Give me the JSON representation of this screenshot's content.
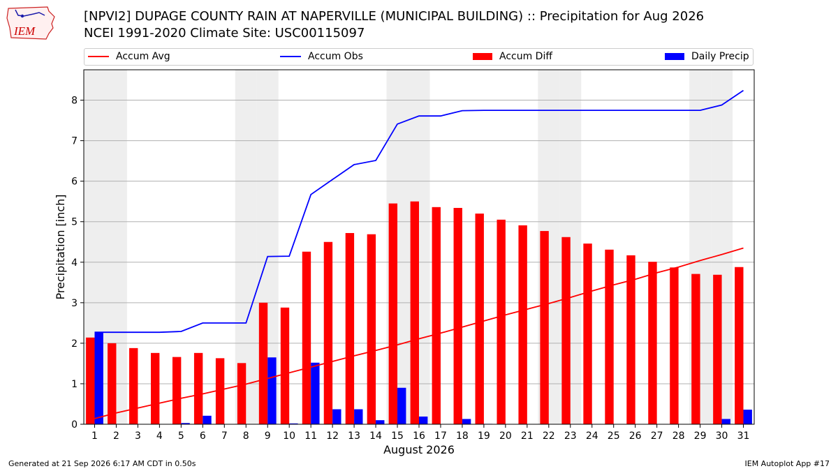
{
  "header": {
    "logo_text": "IEM",
    "title_line1": "[NPVI2] DUPAGE COUNTY RAIN AT NAPERVILLE (MUNICIPAL BUILDING) :: Precipitation for Aug 2026",
    "title_line2": "NCEI 1991-2020 Climate Site: USC00115097"
  },
  "legend": {
    "items": [
      {
        "label": "Accum Avg",
        "color": "#ff0000",
        "kind": "line"
      },
      {
        "label": "Accum Obs",
        "color": "#0000ff",
        "kind": "line"
      },
      {
        "label": "Accum Diff",
        "color": "#ff0000",
        "kind": "box"
      },
      {
        "label": "Daily Precip",
        "color": "#0000ff",
        "kind": "box"
      }
    ]
  },
  "footer": {
    "left": "Generated at 21 Sep 2026 6:17 AM CDT in 0.50s",
    "right": "IEM Autoplot App #17"
  },
  "chart_data": {
    "type": "bar",
    "xlabel": "August 2026",
    "ylabel": "Precipitation [inch]",
    "ylim": [
      0,
      8.75
    ],
    "yticks": [
      0,
      1,
      2,
      3,
      4,
      5,
      6,
      7,
      8
    ],
    "grid": "horizontal",
    "legend_position": "top",
    "days": [
      1,
      2,
      3,
      4,
      5,
      6,
      7,
      8,
      9,
      10,
      11,
      12,
      13,
      14,
      15,
      16,
      17,
      18,
      19,
      20,
      21,
      22,
      23,
      24,
      25,
      26,
      27,
      28,
      29,
      30,
      31
    ],
    "weekend_shading_days": [
      1,
      2,
      8,
      9,
      15,
      16,
      22,
      23,
      29,
      30
    ],
    "series": [
      {
        "name": "Accum Diff",
        "type": "bar",
        "color": "#ff0000",
        "values": [
          2.14,
          2.0,
          1.88,
          1.76,
          1.66,
          1.76,
          1.63,
          1.51,
          3.0,
          2.88,
          4.26,
          4.5,
          4.72,
          4.69,
          5.45,
          5.5,
          5.36,
          5.34,
          5.2,
          5.05,
          4.91,
          4.77,
          4.62,
          4.46,
          4.31,
          4.17,
          4.01,
          3.87,
          3.71,
          3.69,
          3.88
        ]
      },
      {
        "name": "Daily Precip",
        "type": "bar",
        "color": "#0000ff",
        "values": [
          2.27,
          0,
          0,
          0,
          0.03,
          0.21,
          0,
          0,
          1.65,
          0.02,
          1.52,
          0.37,
          0.37,
          0.1,
          0.9,
          0.19,
          0,
          0.13,
          0.01,
          0,
          0,
          0,
          0,
          0,
          0,
          0,
          0,
          0,
          0,
          0.13,
          0.36
        ]
      },
      {
        "name": "Accum Avg",
        "type": "line",
        "color": "#ff0000",
        "values": [
          0.14,
          0.28,
          0.4,
          0.52,
          0.64,
          0.75,
          0.87,
          0.99,
          1.13,
          1.27,
          1.41,
          1.55,
          1.69,
          1.82,
          1.96,
          2.11,
          2.25,
          2.4,
          2.55,
          2.7,
          2.84,
          2.98,
          3.13,
          3.29,
          3.44,
          3.58,
          3.74,
          3.88,
          4.04,
          4.19,
          4.35
        ]
      },
      {
        "name": "Accum Obs",
        "type": "line",
        "color": "#0000ff",
        "values": [
          2.27,
          2.27,
          2.27,
          2.27,
          2.29,
          2.5,
          2.5,
          2.5,
          4.14,
          4.15,
          5.67,
          6.04,
          6.41,
          6.51,
          7.41,
          7.61,
          7.61,
          7.74,
          7.75,
          7.75,
          7.75,
          7.75,
          7.75,
          7.75,
          7.75,
          7.75,
          7.75,
          7.75,
          7.75,
          7.88,
          8.24
        ]
      }
    ]
  }
}
